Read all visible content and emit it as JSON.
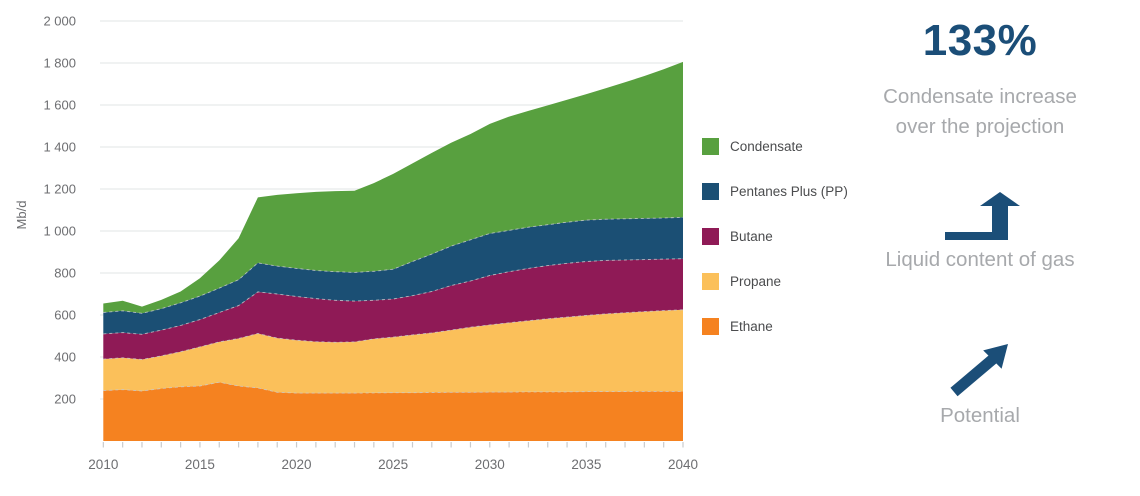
{
  "chart_data": {
    "type": "area",
    "stacked": true,
    "ylabel": "Mb/d",
    "ylim": [
      0,
      2000
    ],
    "grid": "horizontal",
    "legend_position": "right",
    "years": [
      2010,
      2011,
      2012,
      2013,
      2014,
      2015,
      2016,
      2017,
      2018,
      2019,
      2020,
      2021,
      2022,
      2023,
      2024,
      2025,
      2026,
      2027,
      2028,
      2029,
      2030,
      2031,
      2032,
      2033,
      2034,
      2035,
      2036,
      2037,
      2038,
      2039,
      2040
    ],
    "y_ticks": [
      {
        "value": 200,
        "label": "200"
      },
      {
        "value": 400,
        "label": "400"
      },
      {
        "value": 600,
        "label": "600"
      },
      {
        "value": 800,
        "label": "800"
      },
      {
        "value": 1000,
        "label": "1 000"
      },
      {
        "value": 1200,
        "label": "1 200"
      },
      {
        "value": 1400,
        "label": "1 400"
      },
      {
        "value": 1600,
        "label": "1 600"
      },
      {
        "value": 1800,
        "label": "1 800"
      },
      {
        "value": 2000,
        "label": "2 000"
      }
    ],
    "x_ticks_labeled": [
      {
        "value": 2010,
        "label": "2010"
      },
      {
        "value": 2015,
        "label": "2015"
      },
      {
        "value": 2020,
        "label": "2020"
      },
      {
        "value": 2025,
        "label": "2025"
      },
      {
        "value": 2030,
        "label": "2030"
      },
      {
        "value": 2035,
        "label": "2035"
      },
      {
        "value": 2040,
        "label": "2040"
      }
    ],
    "x_minor_tick_every_years": 1,
    "series": [
      {
        "name": "Ethane",
        "color": "#F58220",
        "values": [
          240,
          245,
          238,
          250,
          258,
          262,
          280,
          262,
          253,
          232,
          228,
          228,
          228,
          228,
          229,
          230,
          230,
          231,
          232,
          232,
          233,
          233,
          234,
          234,
          234,
          235,
          235,
          235,
          236,
          236,
          236
        ]
      },
      {
        "name": "Propane",
        "color": "#FBC05A",
        "values": [
          150,
          151,
          150,
          155,
          167,
          186,
          192,
          226,
          259,
          258,
          252,
          245,
          242,
          244,
          257,
          265,
          275,
          284,
          296,
          310,
          320,
          330,
          339,
          348,
          356,
          363,
          370,
          376,
          380,
          385,
          389
        ]
      },
      {
        "name": "Butane",
        "color": "#8F1A56",
        "values": [
          120,
          120,
          120,
          123,
          125,
          130,
          140,
          157,
          198,
          210,
          208,
          205,
          200,
          194,
          184,
          181,
          187,
          197,
          212,
          220,
          235,
          243,
          249,
          253,
          256,
          257,
          255,
          251,
          248,
          245,
          243
        ]
      },
      {
        "name": "Pentanes Plus (PP)",
        "color": "#1B4F74",
        "values": [
          102,
          104,
          100,
          102,
          108,
          112,
          116,
          123,
          138,
          133,
          134,
          134,
          136,
          137,
          138,
          142,
          163,
          178,
          188,
          196,
          200,
          197,
          196,
          195,
          196,
          197,
          196,
          196,
          196,
          196,
          197
        ]
      },
      {
        "name": "Condensate",
        "color": "#58A03F",
        "values": [
          43,
          48,
          32,
          42,
          54,
          85,
          132,
          197,
          312,
          339,
          358,
          374,
          384,
          389,
          420,
          454,
          467,
          482,
          492,
          504,
          522,
          542,
          554,
          568,
          583,
          600,
          624,
          650,
          678,
          708,
          740
        ]
      }
    ],
    "legend_top_to_bottom": [
      "Condensate",
      "Pentanes Plus (PP)",
      "Butane",
      "Propane",
      "Ethane"
    ]
  },
  "stats": {
    "headline_value": "133%",
    "caption_line1": "Condensate increase",
    "caption_line2": "over the projection",
    "middle_label": "Liquid content of gas",
    "bottom_label": "Potential"
  },
  "colors": {
    "headline_navy": "#1B4E78",
    "caption_gray": "#A7A9AC",
    "axis_text": "#6D6E71",
    "legend_text": "#4B4C4E",
    "gridline": "#E8E9EA",
    "tick": "#C9CBCD",
    "band_boundary": "#C8CACC"
  }
}
